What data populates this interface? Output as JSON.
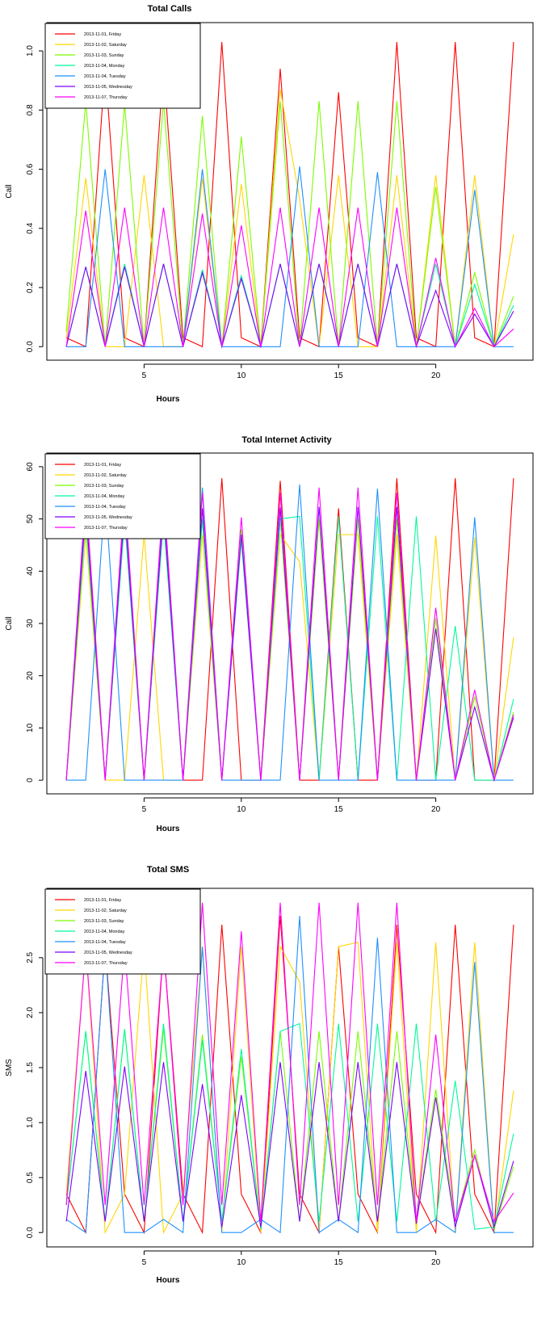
{
  "legend": [
    {
      "name": "2013-11-01, Friday",
      "color": "#ff0000"
    },
    {
      "name": "2013-11-02, Saturday",
      "color": "#ffd700"
    },
    {
      "name": "2013-11-03, Sunday",
      "color": "#7cfc00"
    },
    {
      "name": "2013-11-04, Monday",
      "color": "#00fa9a"
    },
    {
      "name": "2013-11-04, Tuesday",
      "color": "#1e90ff"
    },
    {
      "name": "2013-11-05, Wednesday",
      "color": "#7f00ff"
    },
    {
      "name": "2013-11-07, Thursday",
      "color": "#ff00ff"
    }
  ],
  "chart_data": [
    {
      "type": "line",
      "title": "Total Calls",
      "xlabel": "Hours",
      "ylabel": "Call",
      "xlim": [
        1,
        24
      ],
      "ylim": [
        0,
        1.05
      ],
      "xticks": [
        5,
        10,
        15,
        20
      ],
      "yticks": [
        0.0,
        0.2,
        0.4,
        0.6,
        0.8,
        1.0
      ],
      "ytick_labels": [
        "0.0",
        "0.2",
        "0.4",
        "0.6",
        "0.8",
        "1.0"
      ],
      "legend_position": "top-left",
      "x": [
        1,
        2,
        3,
        4,
        5,
        6,
        7,
        8,
        9,
        10,
        11,
        12,
        13,
        14,
        15,
        16,
        17,
        18,
        19,
        20,
        21,
        22,
        23,
        24
      ],
      "series": [
        {
          "name": "2013-11-01, Friday",
          "color": "#ff0000",
          "values": [
            0.03,
            0,
            0.95,
            0.03,
            0,
            0.95,
            0.03,
            0,
            1.03,
            0.03,
            0,
            0.94,
            0.03,
            0,
            0.86,
            0.03,
            0,
            1.03,
            0.03,
            0,
            1.03,
            0.03,
            0,
            1.03
          ]
        },
        {
          "name": "2013-11-02, Saturday",
          "color": "#ffd700",
          "values": [
            0.03,
            0.57,
            0,
            0,
            0.58,
            0,
            0,
            0.57,
            0,
            0.55,
            0,
            0.87,
            0.5,
            0,
            0.58,
            0,
            0,
            0.58,
            0,
            0.58,
            0,
            0.58,
            0,
            0.38
          ]
        },
        {
          "name": "2013-11-03, Sunday",
          "color": "#7cfc00",
          "values": [
            0.05,
            0.83,
            0,
            0.82,
            0,
            0.83,
            0,
            0.78,
            0,
            0.71,
            0,
            0.83,
            0,
            0.83,
            0,
            0.83,
            0,
            0.83,
            0,
            0.54,
            0,
            0.25,
            0,
            0.17
          ]
        },
        {
          "name": "2013-11-04, Monday",
          "color": "#00fa9a",
          "values": [
            0,
            0.27,
            0,
            0.28,
            0,
            0.28,
            0,
            0.26,
            0,
            0.24,
            0,
            0.28,
            0,
            0.28,
            0,
            0.28,
            0,
            0.28,
            0,
            0.28,
            0,
            0.21,
            0,
            0.14
          ]
        },
        {
          "name": "2013-11-04, Tuesday",
          "color": "#1e90ff",
          "values": [
            0,
            0,
            0.6,
            0,
            0,
            0,
            0,
            0.6,
            0,
            0,
            0,
            0,
            0.61,
            0,
            0,
            0,
            0.59,
            0,
            0,
            0,
            0,
            0.53,
            0,
            0
          ]
        },
        {
          "name": "2013-11-05, Wednesday",
          "color": "#7f00ff",
          "values": [
            0,
            0.27,
            0,
            0.27,
            0,
            0.28,
            0,
            0.25,
            0,
            0.23,
            0,
            0.28,
            0,
            0.28,
            0,
            0.28,
            0,
            0.28,
            0,
            0.19,
            0,
            0.11,
            0,
            0.12
          ]
        },
        {
          "name": "2013-11-07, Thursday",
          "color": "#ff00ff",
          "values": [
            0,
            0.46,
            0,
            0.47,
            0,
            0.47,
            0,
            0.45,
            0,
            0.41,
            0,
            0.47,
            0,
            0.47,
            0,
            0.47,
            0,
            0.47,
            0,
            0.3,
            0,
            0.13,
            0,
            0.06
          ]
        }
      ]
    },
    {
      "type": "line",
      "title": "Total Internet Activity",
      "xlabel": "Hours",
      "ylabel": "Call",
      "xlim": [
        1,
        24
      ],
      "ylim": [
        0,
        60
      ],
      "xticks": [
        5,
        10,
        15,
        20
      ],
      "yticks": [
        0,
        10,
        20,
        30,
        40,
        50,
        60
      ],
      "ytick_labels": [
        "0",
        "10",
        "20",
        "30",
        "40",
        "50",
        "60"
      ],
      "legend_position": "top-left",
      "x": [
        1,
        2,
        3,
        4,
        5,
        6,
        7,
        8,
        9,
        10,
        11,
        12,
        13,
        14,
        15,
        16,
        17,
        18,
        19,
        20,
        21,
        22,
        23,
        24
      ],
      "series": [
        {
          "name": "2013-11-01, Friday",
          "color": "#ff0000",
          "values": [
            0,
            52,
            0,
            52,
            0,
            52,
            0,
            0,
            57.8,
            0,
            0,
            57.3,
            0,
            0,
            52,
            0,
            0,
            57.8,
            0,
            0,
            57.8,
            0,
            0,
            57.8
          ]
        },
        {
          "name": "2013-11-02, Saturday",
          "color": "#ffd700",
          "values": [
            0,
            47,
            0,
            0,
            47,
            0,
            0,
            47,
            0,
            47,
            0,
            47,
            41.8,
            0,
            47,
            47,
            0,
            47,
            0,
            46.8,
            0,
            46.5,
            0,
            27.3
          ]
        },
        {
          "name": "2013-11-03, Sunday",
          "color": "#7cfc00",
          "values": [
            0,
            50,
            0,
            50,
            0,
            50,
            0,
            50,
            0,
            48,
            0,
            50,
            0,
            50,
            0,
            50,
            0,
            50,
            0,
            31,
            0,
            16,
            0,
            13
          ]
        },
        {
          "name": "2013-11-04, Monday",
          "color": "#00fa9a",
          "values": [
            0,
            50,
            0,
            50,
            0,
            50,
            0,
            50,
            0,
            46,
            0,
            50,
            50.5,
            0,
            50.5,
            0,
            50.5,
            0,
            50.5,
            0,
            29.5,
            0,
            0,
            15.5
          ]
        },
        {
          "name": "2013-11-04, Tuesday",
          "color": "#1e90ff",
          "values": [
            0,
            0,
            55,
            0,
            0,
            0,
            0,
            56,
            0,
            0,
            0,
            0,
            56.6,
            0,
            0,
            0,
            55.8,
            0,
            0,
            0,
            0,
            50.3,
            0,
            0
          ]
        },
        {
          "name": "2013-11-05, Wednesday",
          "color": "#7f00ff",
          "values": [
            0,
            52,
            0,
            52,
            0,
            52,
            0,
            52,
            0,
            47,
            0,
            52.2,
            0,
            52.3,
            0,
            52.3,
            0,
            52.3,
            0,
            29,
            0,
            14,
            0,
            12
          ]
        },
        {
          "name": "2013-11-07, Thursday",
          "color": "#ff00ff",
          "values": [
            0,
            55,
            0,
            55,
            0,
            55,
            0,
            55,
            0,
            50.3,
            0,
            55,
            0,
            56,
            0,
            56,
            0,
            55,
            0,
            33,
            0,
            17.3,
            0,
            12.5
          ]
        }
      ]
    },
    {
      "type": "line",
      "title": "Total SMS",
      "xlabel": "Hours",
      "ylabel": "SMS",
      "xlim": [
        1,
        24
      ],
      "ylim": [
        0,
        3.0
      ],
      "xticks": [
        5,
        10,
        15,
        20
      ],
      "yticks": [
        0.0,
        0.5,
        1.0,
        1.5,
        2.0,
        2.5
      ],
      "ytick_labels": [
        "0.0",
        "0.5",
        "1.0",
        "1.5",
        "2.0",
        "2.5"
      ],
      "legend_position": "top-left",
      "x": [
        1,
        2,
        3,
        4,
        5,
        6,
        7,
        8,
        9,
        10,
        11,
        12,
        13,
        14,
        15,
        16,
        17,
        18,
        19,
        20,
        21,
        22,
        23,
        24
      ],
      "series": [
        {
          "name": "2013-11-01, Friday",
          "color": "#ff0000",
          "values": [
            0.35,
            0,
            2.6,
            0.35,
            0,
            2.6,
            0.35,
            0,
            2.8,
            0.35,
            0,
            2.88,
            0.35,
            0,
            2.6,
            0.35,
            0,
            2.8,
            0.35,
            0,
            2.8,
            0.35,
            0,
            2.8
          ]
        },
        {
          "name": "2013-11-02, Saturday",
          "color": "#ffd700",
          "values": [
            0.35,
            2.6,
            0,
            0.35,
            2.6,
            0,
            0.35,
            2.6,
            0,
            2.6,
            0,
            2.6,
            2.28,
            0,
            2.6,
            2.64,
            0,
            2.64,
            0,
            2.64,
            0,
            2.64,
            0,
            1.29
          ]
        },
        {
          "name": "2013-11-03, Sunday",
          "color": "#7cfc00",
          "values": [
            0.25,
            1.83,
            0.1,
            1.85,
            0.1,
            1.85,
            0.1,
            1.8,
            0.1,
            1.6,
            0.03,
            1.83,
            0.1,
            1.83,
            0.1,
            1.83,
            0.1,
            1.83,
            0.1,
            1.3,
            0.1,
            0.75,
            0.03,
            0.6
          ]
        },
        {
          "name": "2013-11-04, Monday",
          "color": "#00fa9a",
          "values": [
            0.25,
            1.83,
            0.1,
            1.85,
            0.1,
            1.9,
            0.1,
            1.75,
            0.1,
            1.67,
            0.03,
            1.83,
            1.9,
            0.1,
            1.9,
            0.1,
            1.9,
            0.1,
            1.9,
            0.1,
            1.38,
            0.03,
            0.05,
            0.9
          ]
        },
        {
          "name": "2013-11-04, Tuesday",
          "color": "#1e90ff",
          "values": [
            0.12,
            0,
            2.6,
            0,
            0,
            0.12,
            0,
            2.6,
            0,
            0,
            0.12,
            0,
            2.88,
            0,
            0.12,
            0,
            2.68,
            0,
            0,
            0.12,
            0,
            2.46,
            0,
            0
          ]
        },
        {
          "name": "2013-11-05, Wednesday",
          "color": "#7f00ff",
          "values": [
            0.1,
            1.47,
            0.1,
            1.51,
            0.1,
            1.55,
            0.1,
            1.35,
            0.05,
            1.25,
            0.05,
            1.55,
            0.1,
            1.55,
            0.1,
            1.55,
            0.1,
            1.55,
            0.08,
            1.23,
            0.05,
            0.7,
            0.05,
            0.65
          ]
        },
        {
          "name": "2013-11-07, Thursday",
          "color": "#ff00ff",
          "values": [
            0.25,
            2.6,
            0.25,
            2.6,
            0.25,
            2.6,
            0.25,
            3.0,
            0.25,
            2.74,
            0.1,
            3.0,
            0.25,
            3.0,
            0.25,
            3.0,
            0.25,
            3.0,
            0.1,
            1.8,
            0.1,
            0.7,
            0.1,
            0.36
          ]
        }
      ]
    }
  ]
}
